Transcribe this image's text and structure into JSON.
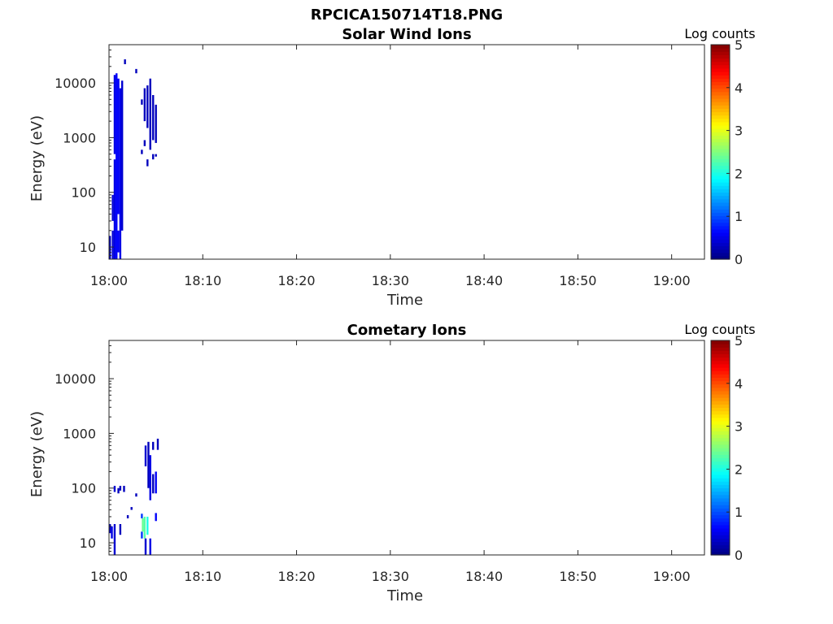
{
  "figure_title": "RPCICA150714T18.PNG",
  "chart_data": [
    {
      "type": "heatmap",
      "title": "Solar Wind Ions",
      "xlabel": "Time",
      "ylabel": "Energy (eV)",
      "xticks": [
        "18:00",
        "18:10",
        "18:20",
        "18:30",
        "18:40",
        "18:50",
        "19:00"
      ],
      "xlim": [
        "18:00",
        "19:03.5"
      ],
      "yscale": "log",
      "ylim": [
        6,
        50000
      ],
      "yticks": [
        10,
        100,
        1000,
        10000
      ],
      "ytick_labels": [
        "10",
        "100",
        "1000",
        "10000"
      ],
      "colorbar": {
        "label": "Log counts",
        "range": [
          0,
          5
        ],
        "ticks": [
          "0",
          "1",
          "2",
          "3",
          "4",
          "5"
        ],
        "colormap": "jet"
      },
      "x_bin_minutes": 0.2,
      "columns": [
        {
          "t": 0.0,
          "ranges": [
            [
              6,
              16
            ]
          ],
          "level": 0.3
        },
        {
          "t": 0.3,
          "ranges": [
            [
              6,
              20
            ],
            [
              30,
              90
            ]
          ],
          "level": 0.4
        },
        {
          "t": 0.5,
          "ranges": [
            [
              6,
              400
            ],
            [
              500,
              14000
            ]
          ],
          "level": 0.5
        },
        {
          "t": 0.7,
          "ranges": [
            [
              6,
              15000
            ]
          ],
          "level": 0.6
        },
        {
          "t": 0.9,
          "ranges": [
            [
              8,
              20
            ],
            [
              40,
              12000
            ]
          ],
          "level": 0.6
        },
        {
          "t": 1.1,
          "ranges": [
            [
              6,
              8000
            ]
          ],
          "level": 0.5
        },
        {
          "t": 1.3,
          "ranges": [
            [
              20,
              11000
            ]
          ],
          "level": 0.4
        },
        {
          "t": 1.6,
          "ranges": [
            [
              22000,
              27000
            ]
          ],
          "level": 0.3
        },
        {
          "t": 2.8,
          "ranges": [
            [
              15000,
              18000
            ]
          ],
          "level": 0.3
        },
        {
          "t": 3.4,
          "ranges": [
            [
              500,
              600
            ],
            [
              4000,
              5000
            ]
          ],
          "level": 0.3
        },
        {
          "t": 3.7,
          "ranges": [
            [
              700,
              900
            ],
            [
              2000,
              8000
            ]
          ],
          "level": 0.3
        },
        {
          "t": 4.0,
          "ranges": [
            [
              300,
              400
            ],
            [
              1500,
              9000
            ]
          ],
          "level": 0.3
        },
        {
          "t": 4.3,
          "ranges": [
            [
              600,
              12000
            ]
          ],
          "level": 0.3
        },
        {
          "t": 4.6,
          "ranges": [
            [
              400,
              500
            ],
            [
              900,
              6000
            ]
          ],
          "level": 0.3
        },
        {
          "t": 4.9,
          "ranges": [
            [
              450,
              500
            ],
            [
              800,
              4000
            ]
          ],
          "level": 0.3
        }
      ]
    },
    {
      "type": "heatmap",
      "title": "Cometary Ions",
      "xlabel": "Time",
      "ylabel": "Energy (eV)",
      "xticks": [
        "18:00",
        "18:10",
        "18:20",
        "18:30",
        "18:40",
        "18:50",
        "19:00"
      ],
      "xlim": [
        "18:00",
        "19:03.5"
      ],
      "yscale": "log",
      "ylim": [
        6,
        50000
      ],
      "yticks": [
        10,
        100,
        1000,
        10000
      ],
      "ytick_labels": [
        "10",
        "100",
        "1000",
        "10000"
      ],
      "colorbar": {
        "label": "Log counts",
        "range": [
          0,
          5
        ],
        "ticks": [
          "0",
          "1",
          "2",
          "3",
          "4",
          "5"
        ],
        "colormap": "jet"
      },
      "x_bin_minutes": 0.2,
      "columns": [
        {
          "t": 0.0,
          "ranges": [
            [
              15,
              22
            ]
          ],
          "level": 0.3
        },
        {
          "t": 0.2,
          "ranges": [
            [
              12,
              20
            ]
          ],
          "level": 0.5
        },
        {
          "t": 0.5,
          "ranges": [
            [
              6,
              22
            ],
            [
              85,
              110
            ]
          ],
          "level": 0.4
        },
        {
          "t": 0.9,
          "ranges": [
            [
              80,
              100
            ]
          ],
          "level": 0.3
        },
        {
          "t": 1.1,
          "ranges": [
            [
              14,
              22
            ],
            [
              90,
              110
            ]
          ],
          "level": 0.3
        },
        {
          "t": 1.5,
          "ranges": [
            [
              85,
              110
            ]
          ],
          "level": 0.3
        },
        {
          "t": 1.9,
          "ranges": [
            [
              28,
              32
            ]
          ],
          "level": 0.3
        },
        {
          "t": 2.3,
          "ranges": [
            [
              40,
              45
            ]
          ],
          "level": 0.3
        },
        {
          "t": 2.8,
          "ranges": [
            [
              70,
              80
            ]
          ],
          "level": 0.3
        },
        {
          "t": 3.4,
          "ranges": [
            [
              12,
              16
            ],
            [
              28,
              34
            ]
          ],
          "level": 0.9
        },
        {
          "t": 3.5,
          "ranges": [
            [
              16,
              28
            ]
          ],
          "level": 2.4
        },
        {
          "t": 3.7,
          "ranges": [
            [
              12,
              30
            ]
          ],
          "level": 2.3
        },
        {
          "t": 3.8,
          "ranges": [
            [
              6,
              12
            ],
            [
              250,
              600
            ]
          ],
          "level": 0.4
        },
        {
          "t": 4.0,
          "ranges": [
            [
              14,
              30
            ]
          ],
          "level": 2.0
        },
        {
          "t": 4.1,
          "ranges": [
            [
              100,
              700
            ]
          ],
          "level": 0.3
        },
        {
          "t": 4.3,
          "ranges": [
            [
              6,
              12
            ],
            [
              60,
              400
            ]
          ],
          "level": 0.5
        },
        {
          "t": 4.6,
          "ranges": [
            [
              80,
              180
            ],
            [
              500,
              700
            ]
          ],
          "level": 0.3
        },
        {
          "t": 4.9,
          "ranges": [
            [
              25,
              35
            ],
            [
              80,
              200
            ]
          ],
          "level": 0.6
        },
        {
          "t": 5.1,
          "ranges": [
            [
              500,
              800
            ]
          ],
          "level": 0.3
        }
      ]
    }
  ]
}
